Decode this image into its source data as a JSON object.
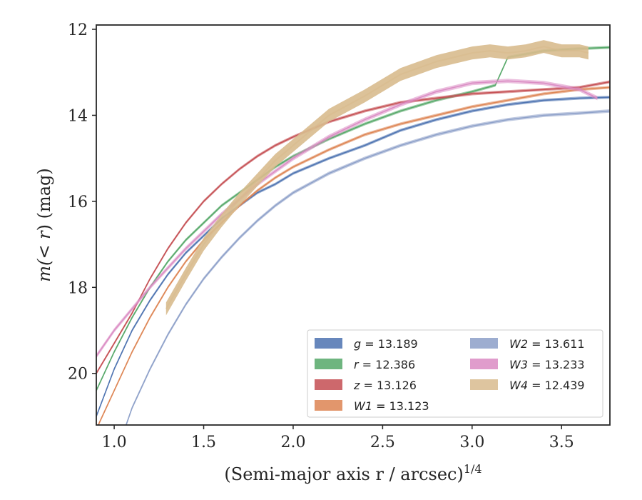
{
  "chart_data": {
    "type": "line",
    "xlabel": "(Semi-major axis r / arcsec)",
    "xlabel_italic": "r",
    "xlabel_exponent": "1/4",
    "ylabel_prefix": "m(",
    "ylabel_mid": "< r",
    "ylabel_suffix": ") (mag)",
    "xlim": [
      0.9,
      3.77
    ],
    "ylim": [
      21.2,
      11.9
    ],
    "y_inverted": true,
    "xticks": [
      1.0,
      1.5,
      2.0,
      2.5,
      3.0,
      3.5
    ],
    "xtick_labels": [
      "1.0",
      "1.5",
      "2.0",
      "2.5",
      "3.0",
      "3.5"
    ],
    "yticks": [
      12,
      14,
      16,
      18,
      20
    ],
    "ytick_labels": [
      "12",
      "14",
      "16",
      "18",
      "20"
    ],
    "grid": false,
    "legend_position": "lower-right",
    "series": [
      {
        "name": "g = 13.189",
        "band": "g",
        "value": "13.189",
        "color": "#4c72b0",
        "width": 0.07,
        "x": [
          0.9,
          1.0,
          1.1,
          1.2,
          1.3,
          1.4,
          1.5,
          1.6,
          1.7,
          1.8,
          1.9,
          2.0,
          2.2,
          2.4,
          2.6,
          2.8,
          3.0,
          3.2,
          3.4,
          3.6,
          3.77
        ],
        "y": [
          21.0,
          19.9,
          19.0,
          18.3,
          17.7,
          17.2,
          16.8,
          16.4,
          16.1,
          15.8,
          15.6,
          15.35,
          15.0,
          14.7,
          14.35,
          14.1,
          13.9,
          13.75,
          13.65,
          13.6,
          13.58
        ]
      },
      {
        "name": "r = 12.386",
        "band": "r",
        "value": "12.386",
        "color": "#55a868",
        "width": 0.07,
        "x": [
          0.9,
          1.0,
          1.1,
          1.2,
          1.3,
          1.4,
          1.5,
          1.6,
          1.7,
          1.8,
          1.9,
          2.0,
          2.2,
          2.4,
          2.6,
          2.8,
          3.0,
          3.13,
          3.2,
          3.4,
          3.6,
          3.77
        ],
        "y": [
          20.4,
          19.5,
          18.7,
          18.0,
          17.4,
          16.9,
          16.5,
          16.1,
          15.8,
          15.5,
          15.2,
          14.95,
          14.55,
          14.2,
          13.9,
          13.65,
          13.45,
          13.3,
          12.65,
          12.5,
          12.45,
          12.42
        ]
      },
      {
        "name": "z = 13.126",
        "band": "z",
        "value": "13.126",
        "color": "#c44e52",
        "width": 0.07,
        "x": [
          0.9,
          1.0,
          1.1,
          1.2,
          1.3,
          1.4,
          1.5,
          1.6,
          1.7,
          1.8,
          1.9,
          2.0,
          2.2,
          2.4,
          2.6,
          2.8,
          3.0,
          3.2,
          3.4,
          3.6,
          3.77
        ],
        "y": [
          20.0,
          19.3,
          18.6,
          17.8,
          17.1,
          16.5,
          16.0,
          15.6,
          15.25,
          14.95,
          14.7,
          14.5,
          14.15,
          13.9,
          13.7,
          13.6,
          13.5,
          13.45,
          13.4,
          13.35,
          13.22
        ]
      },
      {
        "name": "W1 = 13.123",
        "band": "W1",
        "value": "13.123",
        "color": "#dd8452",
        "width": 0.07,
        "x": [
          0.9,
          1.0,
          1.1,
          1.2,
          1.3,
          1.4,
          1.5,
          1.6,
          1.7,
          1.8,
          1.9,
          2.0,
          2.2,
          2.4,
          2.6,
          2.8,
          3.0,
          3.2,
          3.4,
          3.6,
          3.77
        ],
        "y": [
          21.3,
          20.4,
          19.5,
          18.7,
          18.0,
          17.4,
          16.9,
          16.5,
          16.1,
          15.75,
          15.45,
          15.2,
          14.8,
          14.45,
          14.2,
          14.0,
          13.8,
          13.65,
          13.5,
          13.4,
          13.35
        ]
      },
      {
        "name": "W2 = 13.611",
        "band": "W2",
        "value": "13.611",
        "color": "#8c9fc8",
        "width": 0.08,
        "x": [
          1.05,
          1.1,
          1.2,
          1.3,
          1.4,
          1.5,
          1.6,
          1.7,
          1.8,
          1.9,
          2.0,
          2.2,
          2.4,
          2.6,
          2.8,
          3.0,
          3.2,
          3.4,
          3.6,
          3.77
        ],
        "y": [
          21.4,
          20.8,
          19.9,
          19.1,
          18.4,
          17.8,
          17.3,
          16.85,
          16.45,
          16.1,
          15.8,
          15.35,
          15.0,
          14.7,
          14.45,
          14.25,
          14.1,
          14.0,
          13.95,
          13.9
        ]
      },
      {
        "name": "W3 = 13.233",
        "band": "W3",
        "value": "13.233",
        "color": "#da8bc3",
        "width": 0.1,
        "x": [
          0.9,
          1.0,
          1.1,
          1.2,
          1.3,
          1.4,
          1.5,
          1.6,
          1.7,
          1.8,
          1.9,
          2.0,
          2.2,
          2.4,
          2.6,
          2.8,
          3.0,
          3.2,
          3.4,
          3.6,
          3.7
        ],
        "y": [
          19.6,
          19.0,
          18.5,
          18.0,
          17.55,
          17.1,
          16.7,
          16.3,
          15.95,
          15.6,
          15.3,
          15.0,
          14.5,
          14.1,
          13.75,
          13.45,
          13.25,
          13.2,
          13.25,
          13.4,
          13.6
        ]
      },
      {
        "name": "W4 = 12.439",
        "band": "W4",
        "value": "12.439",
        "color": "#d8bb8e",
        "width": 0.3,
        "x": [
          1.29,
          1.4,
          1.5,
          1.6,
          1.7,
          1.8,
          1.9,
          2.0,
          2.2,
          2.4,
          2.6,
          2.8,
          3.0,
          3.1,
          3.2,
          3.3,
          3.4,
          3.5,
          3.6,
          3.65
        ],
        "y": [
          18.5,
          17.7,
          17.0,
          16.45,
          15.95,
          15.5,
          15.05,
          14.7,
          14.0,
          13.55,
          13.05,
          12.75,
          12.55,
          12.5,
          12.55,
          12.5,
          12.4,
          12.5,
          12.5,
          12.55
        ]
      }
    ]
  },
  "legend": [
    {
      "band": "g",
      "value": "13.189",
      "color": "#4c72b0"
    },
    {
      "band": "r",
      "value": "12.386",
      "color": "#55a868"
    },
    {
      "band": "z",
      "value": "13.126",
      "color": "#c44e52"
    },
    {
      "band": "W1",
      "value": "13.123",
      "color": "#dd8452"
    },
    {
      "band": "W2",
      "value": "13.611",
      "color": "#8c9fc8"
    },
    {
      "band": "W3",
      "value": "13.233",
      "color": "#da8bc3"
    },
    {
      "band": "W4",
      "value": "12.439",
      "color": "#d8bb8e"
    }
  ]
}
